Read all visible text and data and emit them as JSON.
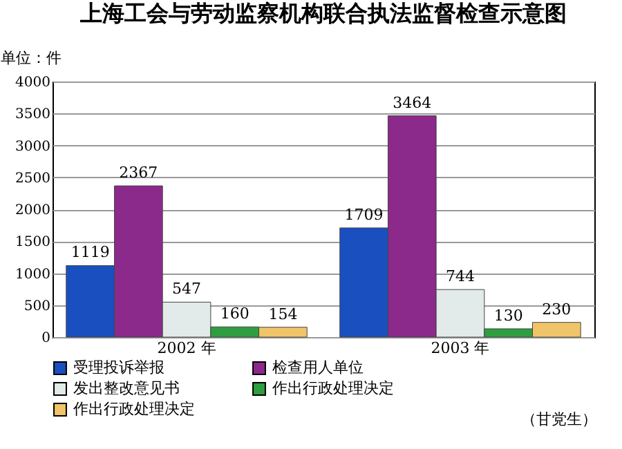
{
  "chart_data": {
    "type": "bar",
    "title": "上海工会与劳动监察机构联合执法监督检查示意图",
    "ylabel": "单位：件",
    "categories": [
      "2002 年",
      "2003 年"
    ],
    "series": [
      {
        "name": "受理投诉举报",
        "color": "#1a4fc0",
        "values": [
          1119,
          1709
        ]
      },
      {
        "name": "检查用人单位",
        "color": "#8b2a8b",
        "values": [
          2367,
          3464
        ]
      },
      {
        "name": "发出整改意见书",
        "color": "#e2eaea",
        "values": [
          547,
          744
        ]
      },
      {
        "name": "作出行政处理决定",
        "color": "#2e9e40",
        "values": [
          160,
          130
        ]
      },
      {
        "name": "作出行政处理决定",
        "color": "#f0c468",
        "values": [
          154,
          230
        ]
      }
    ],
    "ylim": [
      0,
      4000
    ],
    "yticks": [
      0,
      500,
      1000,
      1500,
      2000,
      2500,
      3000,
      3500,
      4000
    ],
    "grid": "y",
    "legend": "bottom",
    "data_labels": true,
    "annotations": [
      "（甘党生）"
    ]
  }
}
